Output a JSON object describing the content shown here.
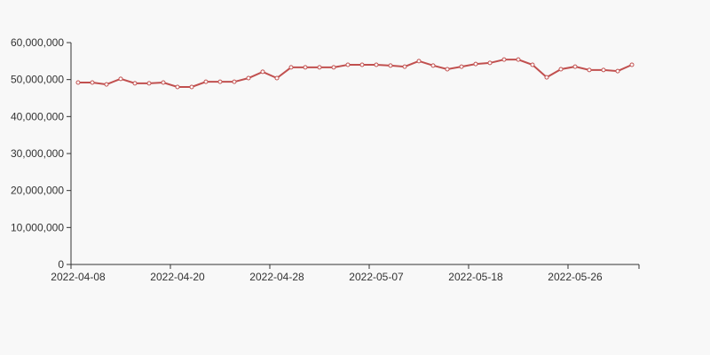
{
  "chart_data": {
    "type": "line",
    "categories": [
      "2022-04-08",
      null,
      null,
      null,
      null,
      null,
      null,
      "2022-04-20",
      null,
      null,
      null,
      null,
      null,
      null,
      "2022-04-28",
      null,
      null,
      null,
      null,
      null,
      null,
      "2022-05-07",
      null,
      null,
      null,
      null,
      null,
      null,
      "2022-05-18",
      null,
      null,
      null,
      null,
      null,
      null,
      "2022-05-26",
      null,
      null,
      null,
      null
    ],
    "series": [
      {
        "color": "#c1504f",
        "values": [
          49200000,
          49200000,
          48700000,
          50200000,
          49000000,
          49000000,
          49200000,
          48000000,
          48000000,
          49400000,
          49400000,
          49400000,
          50400000,
          52100000,
          50400000,
          53300000,
          53300000,
          53300000,
          53300000,
          54000000,
          54000000,
          54000000,
          53800000,
          53500000,
          55000000,
          53800000,
          52800000,
          53500000,
          54200000,
          54500000,
          55400000,
          55400000,
          54000000,
          50600000,
          52800000,
          53500000,
          52600000,
          52600000,
          52300000,
          54000000
        ]
      }
    ],
    "ylim": [
      0,
      60000000
    ],
    "yticks": [
      0,
      {
        "value": 10000000,
        "label": "10,000,000"
      },
      {
        "value": 20000000,
        "label": "20,000,000"
      },
      {
        "value": 30000000,
        "label": "30,000,000"
      },
      {
        "value": 40000000,
        "label": "40,000,000"
      },
      {
        "value": 50000000,
        "label": "50,000,000"
      },
      {
        "value": 60000000,
        "label": "60,000,000"
      }
    ]
  }
}
